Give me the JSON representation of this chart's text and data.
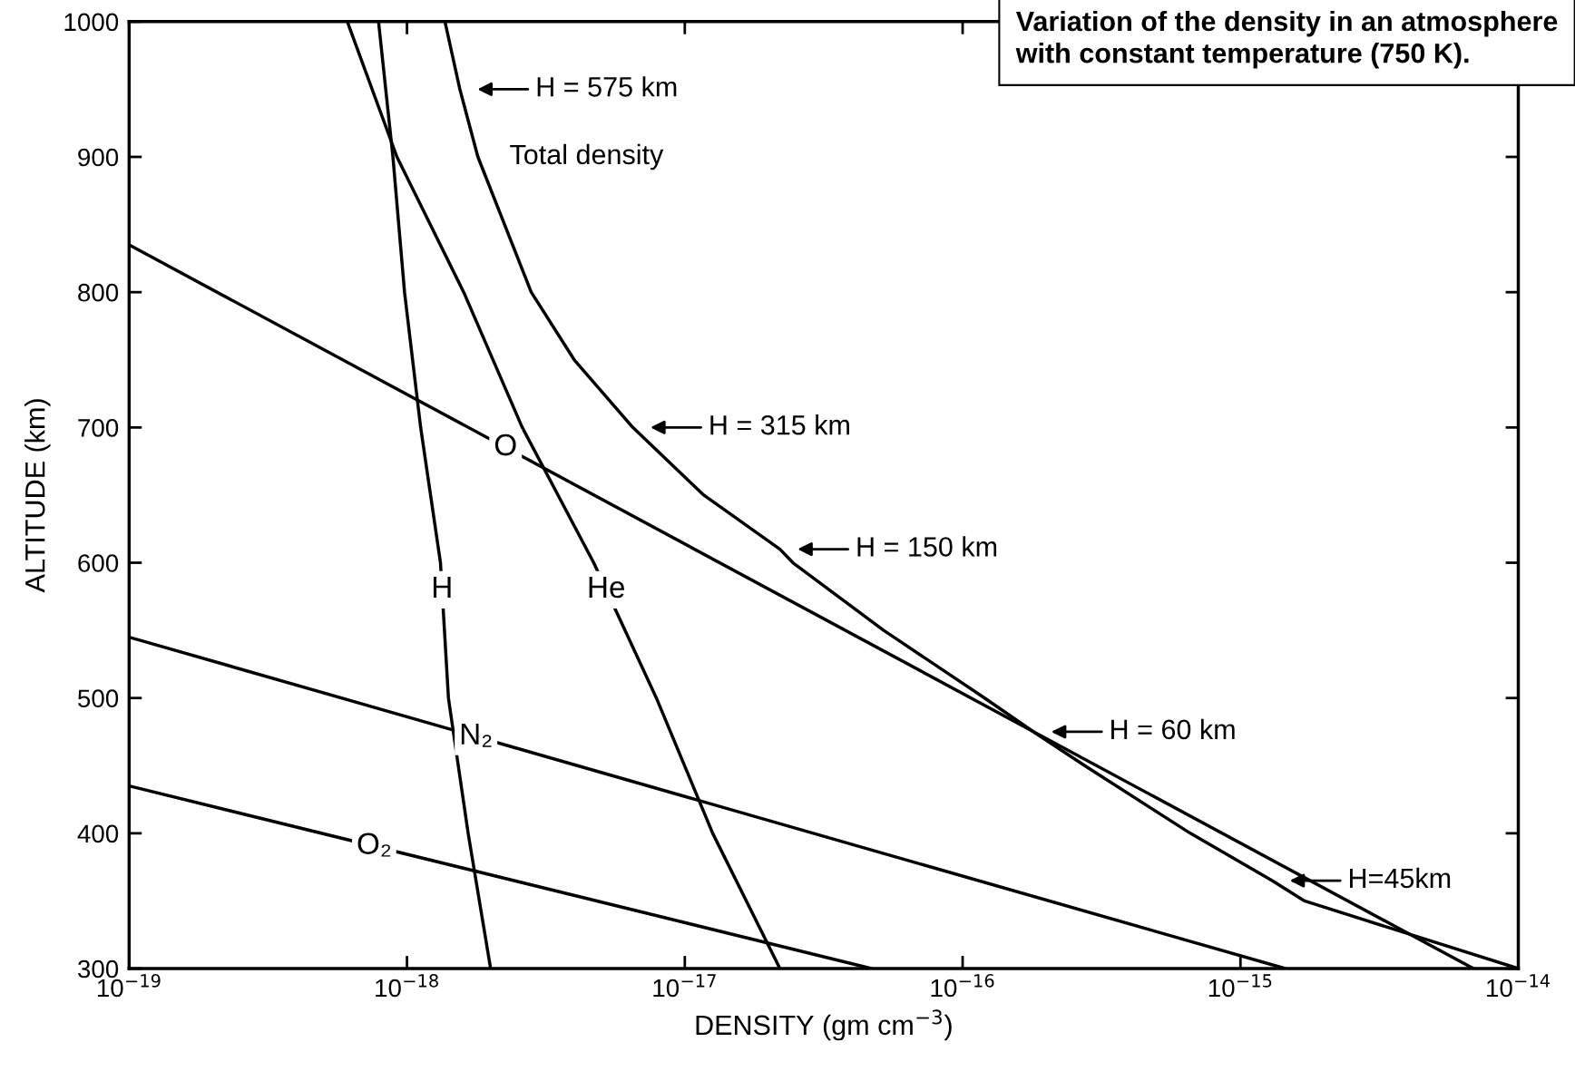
{
  "chart_data": {
    "type": "line",
    "title": "Variation of the density in an atmosphere with constant temperature (750 K).",
    "xlabel": "DENSITY (gm cm$^{−3}$)",
    "ylabel": "ALTITUDE (km)",
    "log": "x",
    "xlim": [
      1e-19,
      1e-14
    ],
    "ylim": [
      300,
      1000
    ],
    "xticks": [
      {
        "value": 1e-19,
        "label": "10$^{−19}$"
      },
      {
        "value": 1e-18,
        "label": "10$^{−18}$"
      },
      {
        "value": 1e-17,
        "label": "10$^{−17}$"
      },
      {
        "value": 1e-16,
        "label": "10$^{−16}$"
      },
      {
        "value": 1e-15,
        "label": "10$^{−15}$"
      },
      {
        "value": 1e-14,
        "label": "10$^{−14}$"
      }
    ],
    "yticks": [
      300,
      400,
      500,
      600,
      700,
      800,
      900,
      1000
    ],
    "grid": false,
    "legend": false,
    "series": [
      {
        "name": "O",
        "color": "#000000",
        "x": [
          1e-19,
          6.9e-15
        ],
        "values": [
          835,
          300
        ]
      },
      {
        "name": "N₂",
        "color": "#000000",
        "x": [
          1e-19,
          1.45e-15
        ],
        "values": [
          545,
          300
        ]
      },
      {
        "name": "O₂",
        "color": "#000000",
        "x": [
          1e-19,
          4.7e-17
        ],
        "values": [
          435,
          300
        ]
      },
      {
        "name": "H",
        "color": "#000000",
        "x": [
          7.9e-19,
          8.9e-19,
          9.8e-19,
          1.12e-18,
          1.32e-18,
          1.41e-18,
          1.66e-18,
          2e-18
        ],
        "values": [
          1000,
          900,
          800,
          700,
          600,
          500,
          400,
          300
        ]
      },
      {
        "name": "He",
        "color": "#000000",
        "x": [
          6.1e-19,
          9.2e-19,
          1.6e-18,
          2.6e-18,
          4.7e-18,
          7.9e-18,
          1.26e-17,
          2.2e-17
        ],
        "values": [
          1000,
          900,
          800,
          700,
          600,
          500,
          400,
          300
        ]
      },
      {
        "name": "Total density",
        "color": "#000000",
        "x": [
          1.37e-18,
          1.55e-18,
          1.8e-18,
          2.8e-18,
          4e-18,
          6.5e-18,
          1.17e-17,
          2.2e-17,
          2.45e-17,
          5.2e-17,
          1.2e-16,
          1.8e-16,
          2.75e-16,
          6.6e-16,
          1.3e-15,
          1.7e-15,
          1e-14
        ],
        "values": [
          1000,
          950,
          900,
          800,
          750,
          700,
          650,
          610,
          600,
          550,
          500,
          475,
          450,
          400,
          365,
          350,
          300
        ]
      }
    ],
    "annotations": [
      {
        "text": "H = 575 km",
        "x": 1.55e-18,
        "y": 950
      },
      {
        "text": "H = 315 km",
        "x": 6.5e-18,
        "y": 700
      },
      {
        "text": "H = 150 km",
        "x": 2.2e-17,
        "y": 610
      },
      {
        "text": "H = 60 km",
        "x": 1.8e-16,
        "y": 475
      },
      {
        "text": "H=45km",
        "x": 1.3e-15,
        "y": 365
      }
    ]
  }
}
